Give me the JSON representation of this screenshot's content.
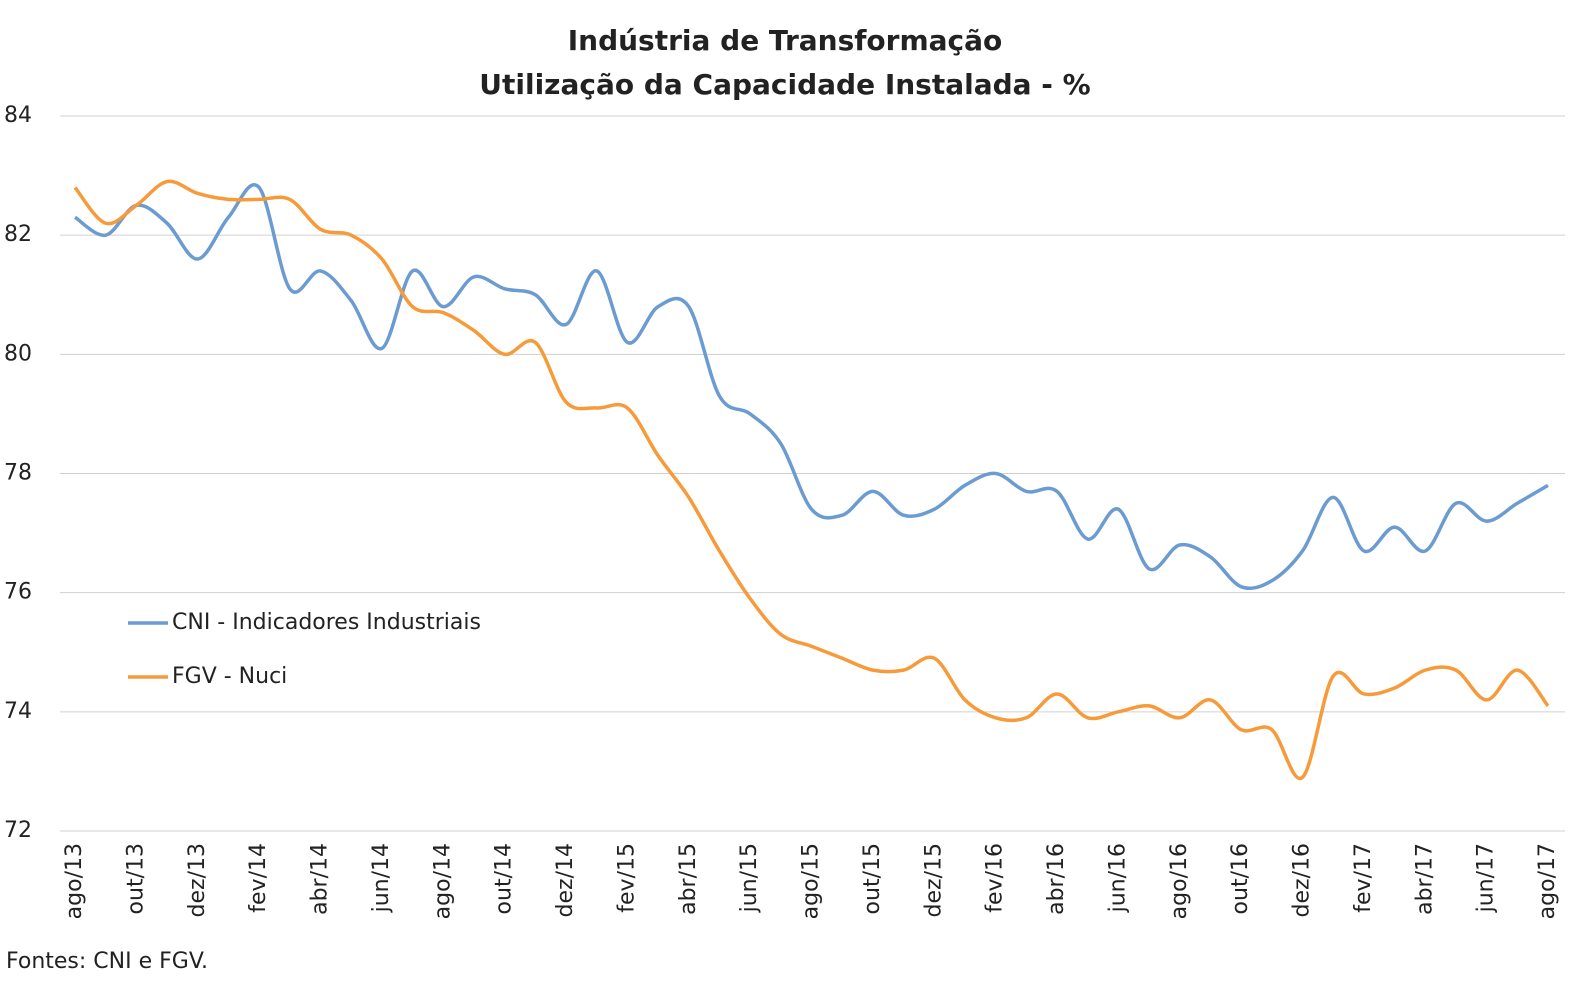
{
  "chart_data": {
    "type": "line",
    "title": "Indústria de Transformação",
    "subtitle": "Utilização da Capacidade Instalada - %",
    "source": "Fontes: CNI e FGV.",
    "categories": [
      "ago/13",
      null,
      "out/13",
      null,
      "dez/13",
      null,
      "fev/14",
      null,
      "abr/14",
      null,
      "jun/14",
      null,
      "ago/14",
      null,
      "out/14",
      null,
      "dez/14",
      null,
      "fev/15",
      null,
      "abr/15",
      null,
      "jun/15",
      null,
      "ago/15",
      null,
      "out/15",
      null,
      "dez/15",
      null,
      "fev/16",
      null,
      "abr/16",
      null,
      "jun/16",
      null,
      "ago/16",
      null,
      "out/16",
      null,
      "dez/16",
      null,
      "fev/17",
      null,
      "abr/17",
      null,
      "jun/17",
      null,
      "ago/17"
    ],
    "series": [
      {
        "name": "CNI - Indicadores Industriais",
        "color": "#6b9bd1",
        "values": [
          82.3,
          82.0,
          82.5,
          82.2,
          81.6,
          82.3,
          82.8,
          81.1,
          81.4,
          80.9,
          80.1,
          81.4,
          80.8,
          81.3,
          81.1,
          81.0,
          80.5,
          81.4,
          80.2,
          80.8,
          80.8,
          79.3,
          79.0,
          78.5,
          77.4,
          77.3,
          77.7,
          77.3,
          77.4,
          77.8,
          78.0,
          77.7,
          77.7,
          76.9,
          77.4,
          76.4,
          76.8,
          76.6,
          76.1,
          76.2,
          76.7,
          77.6,
          76.7,
          77.1,
          76.7,
          77.5,
          77.2,
          77.5,
          77.8
        ]
      },
      {
        "name": "FGV - Nuci",
        "color": "#f79a3a",
        "values": [
          82.8,
          82.2,
          82.5,
          82.9,
          82.7,
          82.6,
          82.6,
          82.6,
          82.1,
          82.0,
          81.6,
          80.8,
          80.7,
          80.4,
          80.0,
          80.2,
          79.2,
          79.1,
          79.1,
          78.3,
          77.6,
          76.7,
          75.9,
          75.3,
          75.1,
          74.9,
          74.7,
          74.7,
          74.9,
          74.2,
          73.9,
          73.9,
          74.3,
          73.9,
          74.0,
          74.1,
          73.9,
          74.2,
          73.7,
          73.7,
          72.9,
          74.6,
          74.3,
          74.4,
          74.7,
          74.7,
          74.2,
          74.7,
          74.1
        ]
      }
    ],
    "ylim": [
      72,
      84
    ],
    "yticks": [
      72,
      74,
      76,
      78,
      80,
      82,
      84
    ],
    "grid": true
  }
}
